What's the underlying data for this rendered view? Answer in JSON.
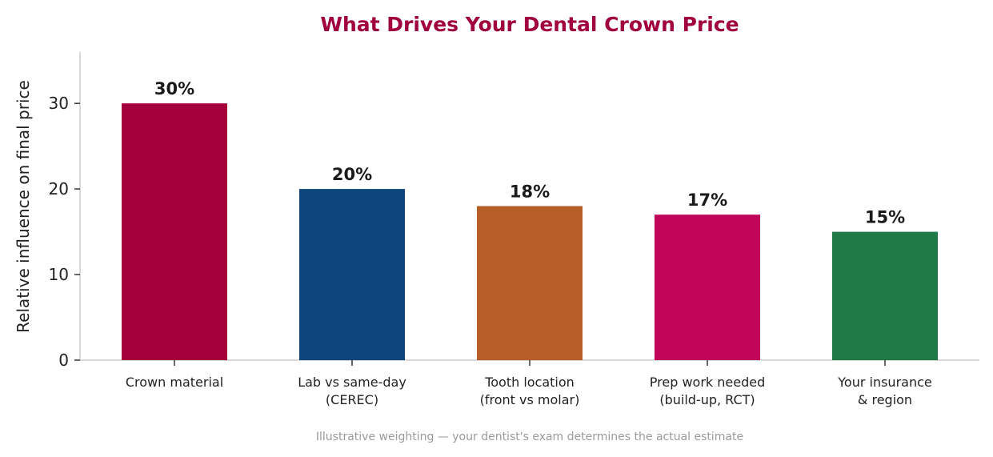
{
  "chart_data": {
    "type": "bar",
    "title": "What Drives Your Dental Crown Price",
    "ylabel": "Relative influence on final price",
    "xlabel": "",
    "categories": [
      [
        "Crown material"
      ],
      [
        "Lab vs same-day",
        "(CEREC)"
      ],
      [
        "Tooth location",
        "(front vs molar)"
      ],
      [
        "Prep work needed",
        "(build-up, RCT)"
      ],
      [
        "Your insurance",
        "& region"
      ]
    ],
    "values": [
      30,
      20,
      18,
      17,
      15
    ],
    "data_labels": [
      "30%",
      "20%",
      "18%",
      "17%",
      "15%"
    ],
    "colors": [
      "#a50039",
      "#0e457c",
      "#b65e26",
      "#c10559",
      "#1f7a47"
    ],
    "ylim": [
      0,
      36
    ],
    "yticks": [
      0,
      10,
      20,
      30
    ],
    "grid": false,
    "footnote": "Illustrative weighting — your dentist's exam determines the actual estimate"
  },
  "theme": {
    "title_color": "#a0003e",
    "axis_color": "#cccccc"
  }
}
